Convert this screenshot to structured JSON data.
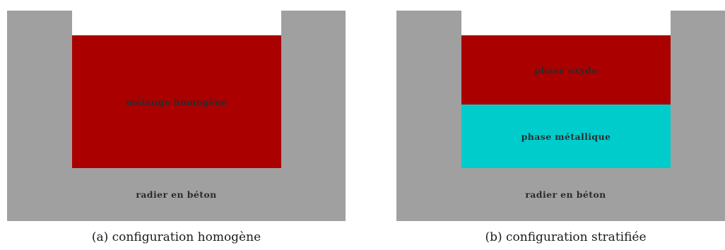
{
  "colors": {
    "concrete": "#a0a0a0",
    "oxide": "#aa0000",
    "metal": "#00cccc"
  },
  "panel_a": {
    "block_label": "mélange homogène",
    "base_label": "radier en béton",
    "caption": "(a) configuration homogène"
  },
  "panel_b": {
    "upper_label": "phase oxyde",
    "lower_label": "phase métallique",
    "base_label": "radier en béton",
    "caption": "(b) configuration stratifiée"
  }
}
